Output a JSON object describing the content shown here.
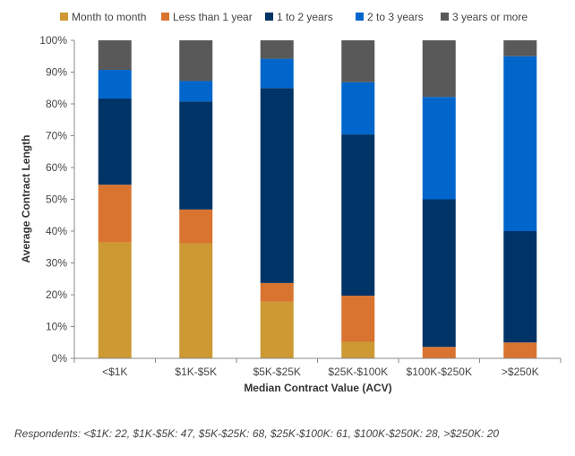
{
  "chart_data": {
    "type": "bar",
    "stacked": true,
    "categories": [
      "<$1K",
      "$1K-$5K",
      "$5K-$25K",
      "$25K-$100K",
      "$100K-$250K",
      ">$250K"
    ],
    "series": [
      {
        "name": "Month to month",
        "color": "#CC9933",
        "values": [
          36.5,
          36.2,
          17.8,
          5.2,
          0,
          0
        ]
      },
      {
        "name": "Less than 1 year",
        "color": "#D97330",
        "values": [
          18.1,
          10.6,
          5.9,
          14.5,
          3.6,
          5.0
        ]
      },
      {
        "name": "1 to 2 years",
        "color": "#003366",
        "values": [
          27.1,
          34.0,
          61.3,
          50.7,
          46.4,
          35.0
        ]
      },
      {
        "name": "2 to 3 years",
        "color": "#0066CC",
        "values": [
          9.0,
          6.4,
          9.2,
          16.4,
          32.2,
          55.0
        ]
      },
      {
        "name": "3 years or more",
        "color": "#595959",
        "values": [
          9.3,
          12.8,
          5.8,
          13.2,
          17.8,
          5.0
        ]
      }
    ],
    "xlabel": "Median Contract Value (ACV)",
    "ylabel": "Average Contract  Length",
    "ylim": [
      0,
      100
    ],
    "yticks": [
      "0%",
      "10%",
      "20%",
      "30%",
      "40%",
      "50%",
      "60%",
      "70%",
      "80%",
      "90%",
      "100%"
    ],
    "legend_position": "top",
    "grid": false
  },
  "footnote": "Respondents: <$1K: 22, $1K-$5K: 47,  $5K-$25K: 68, $25K-$100K: 61, $100K-$250K: 28, >$250K: 20"
}
